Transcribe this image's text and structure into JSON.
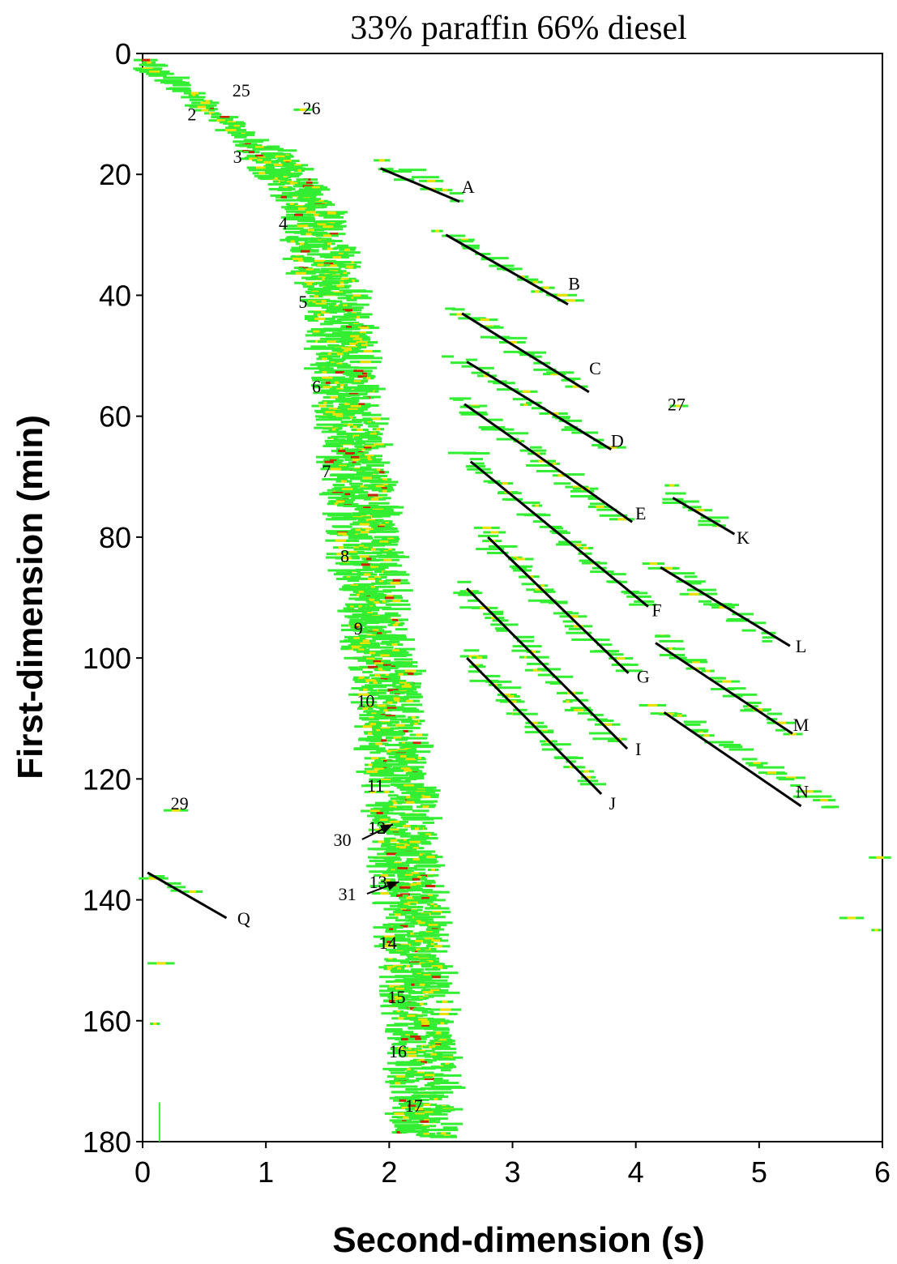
{
  "chart_data": {
    "type": "heatmap",
    "title": "33% paraffin 66% diesel",
    "xlabel": "Second-dimension (s)",
    "ylabel": "First-dimension (min)",
    "xlim": [
      0,
      6
    ],
    "ylim": [
      180,
      0
    ],
    "xticks": [
      0,
      1,
      2,
      3,
      4,
      5,
      6
    ],
    "yticks": [
      0,
      20,
      40,
      60,
      80,
      100,
      120,
      140,
      160,
      180
    ],
    "colors": {
      "low": "#33ee33",
      "mid": "#f0e000",
      "high": "#cc2200",
      "peak": "#222222",
      "line": "#000000"
    },
    "peak_labels": [
      {
        "text": "25",
        "x": 0.8,
        "y": 6
      },
      {
        "text": "2",
        "x": 0.4,
        "y": 10
      },
      {
        "text": "26",
        "x": 1.37,
        "y": 9
      },
      {
        "text": "3",
        "x": 0.77,
        "y": 17
      },
      {
        "text": "4",
        "x": 1.14,
        "y": 28
      },
      {
        "text": "5",
        "x": 1.3,
        "y": 41
      },
      {
        "text": "6",
        "x": 1.41,
        "y": 55
      },
      {
        "text": "7",
        "x": 1.49,
        "y": 69
      },
      {
        "text": "8",
        "x": 1.64,
        "y": 83
      },
      {
        "text": "9",
        "x": 1.75,
        "y": 95
      },
      {
        "text": "10",
        "x": 1.81,
        "y": 107
      },
      {
        "text": "11",
        "x": 1.89,
        "y": 121
      },
      {
        "text": "12",
        "x": 1.9,
        "y": 128
      },
      {
        "text": "13",
        "x": 1.91,
        "y": 137
      },
      {
        "text": "14",
        "x": 1.99,
        "y": 147
      },
      {
        "text": "15",
        "x": 2.06,
        "y": 156
      },
      {
        "text": "16",
        "x": 2.07,
        "y": 165
      },
      {
        "text": "17",
        "x": 2.2,
        "y": 174
      },
      {
        "text": "27",
        "x": 4.33,
        "y": 58
      },
      {
        "text": "29",
        "x": 0.3,
        "y": 124
      },
      {
        "text": "30",
        "x": 1.62,
        "y": 130
      },
      {
        "text": "31",
        "x": 1.66,
        "y": 139
      }
    ],
    "group_labels": [
      {
        "text": "A",
        "x": 2.64,
        "y": 22,
        "line": [
          1.93,
          19,
          2.57,
          24.5
        ]
      },
      {
        "text": "B",
        "x": 3.5,
        "y": 38,
        "line": [
          2.46,
          30,
          3.45,
          41.5
        ]
      },
      {
        "text": "C",
        "x": 3.67,
        "y": 52,
        "line": [
          2.59,
          43,
          3.62,
          56
        ]
      },
      {
        "text": "D",
        "x": 3.85,
        "y": 64,
        "line": [
          2.63,
          51,
          3.8,
          65.5
        ]
      },
      {
        "text": "E",
        "x": 4.04,
        "y": 76,
        "line": [
          2.61,
          58,
          3.97,
          77.5
        ]
      },
      {
        "text": "F",
        "x": 4.17,
        "y": 92,
        "line": [
          2.66,
          67.5,
          4.1,
          91.5
        ]
      },
      {
        "text": "G",
        "x": 4.06,
        "y": 103,
        "line": [
          2.8,
          80,
          3.94,
          102.5
        ]
      },
      {
        "text": "I",
        "x": 4.02,
        "y": 115,
        "line": [
          2.63,
          88.5,
          3.93,
          115
        ]
      },
      {
        "text": "J",
        "x": 3.81,
        "y": 124,
        "line": [
          2.63,
          100,
          3.72,
          122.5
        ]
      },
      {
        "text": "K",
        "x": 4.87,
        "y": 80,
        "line": [
          4.3,
          73.5,
          4.8,
          79.5
        ]
      },
      {
        "text": "L",
        "x": 5.34,
        "y": 98,
        "line": [
          4.2,
          85,
          5.25,
          98
        ]
      },
      {
        "text": "M",
        "x": 5.34,
        "y": 111,
        "line": [
          4.16,
          97.5,
          5.27,
          112.5
        ]
      },
      {
        "text": "N",
        "x": 5.35,
        "y": 122,
        "line": [
          4.23,
          109,
          5.34,
          124.5
        ]
      },
      {
        "text": "Q",
        "x": 0.82,
        "y": 143,
        "line": [
          0.04,
          135.5,
          0.68,
          143
        ]
      }
    ],
    "arrows": [
      {
        "from": [
          1.78,
          130
        ],
        "to": [
          2.03,
          127.5
        ]
      },
      {
        "from": [
          1.82,
          139
        ],
        "to": [
          2.08,
          137
        ]
      }
    ],
    "main_band": {
      "start": [
        0.0,
        1
      ],
      "centerline": [
        [
          0.0,
          1
        ],
        [
          0.55,
          9
        ],
        [
          1.0,
          16
        ],
        [
          1.35,
          25
        ],
        [
          1.55,
          40
        ],
        [
          1.65,
          55
        ],
        [
          1.78,
          75
        ],
        [
          1.9,
          95
        ],
        [
          2.05,
          115
        ],
        [
          2.18,
          140
        ],
        [
          2.25,
          160
        ],
        [
          2.3,
          180
        ]
      ]
    },
    "side_bands": [
      {
        "group": "A",
        "start": [
          1.95,
          18
        ],
        "end": [
          2.55,
          24
        ]
      },
      {
        "group": "B",
        "start": [
          2.45,
          29
        ],
        "end": [
          3.4,
          41
        ]
      },
      {
        "group": "C",
        "start": [
          2.55,
          42
        ],
        "end": [
          3.55,
          55
        ]
      },
      {
        "group": "D",
        "start": [
          2.55,
          50
        ],
        "end": [
          3.75,
          65
        ]
      },
      {
        "group": "E",
        "start": [
          2.55,
          57
        ],
        "end": [
          3.9,
          77
        ]
      },
      {
        "group": "F",
        "start": [
          2.6,
          66
        ],
        "end": [
          4.05,
          91
        ]
      },
      {
        "group": "G",
        "start": [
          2.75,
          79
        ],
        "end": [
          3.9,
          102
        ]
      },
      {
        "group": "I",
        "start": [
          2.6,
          88
        ],
        "end": [
          3.85,
          114
        ]
      },
      {
        "group": "J",
        "start": [
          2.6,
          99
        ],
        "end": [
          3.65,
          121
        ]
      },
      {
        "group": "K",
        "start": [
          4.25,
          72
        ],
        "end": [
          4.7,
          78
        ]
      },
      {
        "group": "L",
        "start": [
          4.2,
          84
        ],
        "end": [
          5.1,
          97
        ]
      },
      {
        "group": "M",
        "start": [
          4.15,
          96
        ],
        "end": [
          5.25,
          112
        ]
      },
      {
        "group": "N",
        "start": [
          4.2,
          108
        ],
        "end": [
          5.6,
          125
        ]
      },
      {
        "group": "Q",
        "start": [
          0.05,
          136
        ],
        "end": [
          0.35,
          139
        ]
      }
    ]
  }
}
